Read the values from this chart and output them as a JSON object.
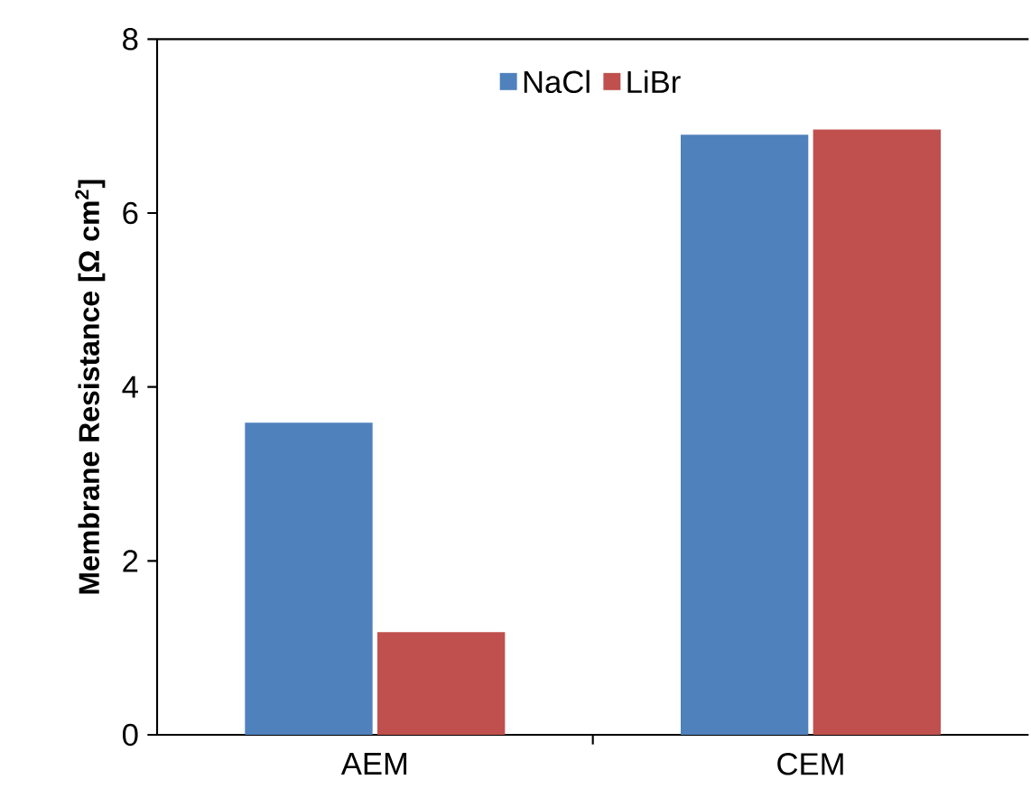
{
  "chart_data": {
    "type": "bar",
    "ylabel": "Membrane Resistance [Ω cm$^{2}$]",
    "categories": [
      "AEM",
      "CEM"
    ],
    "series": [
      {
        "name": "NaCl",
        "color": "#4f81bd",
        "values": [
          3.59,
          6.9
        ]
      },
      {
        "name": "LiBr",
        "color": "#c0504d",
        "values": [
          1.18,
          6.96
        ]
      }
    ],
    "ylim": [
      0,
      8
    ],
    "yticks": [
      0,
      2,
      4,
      6,
      8
    ],
    "legend": "top",
    "grid": false
  }
}
